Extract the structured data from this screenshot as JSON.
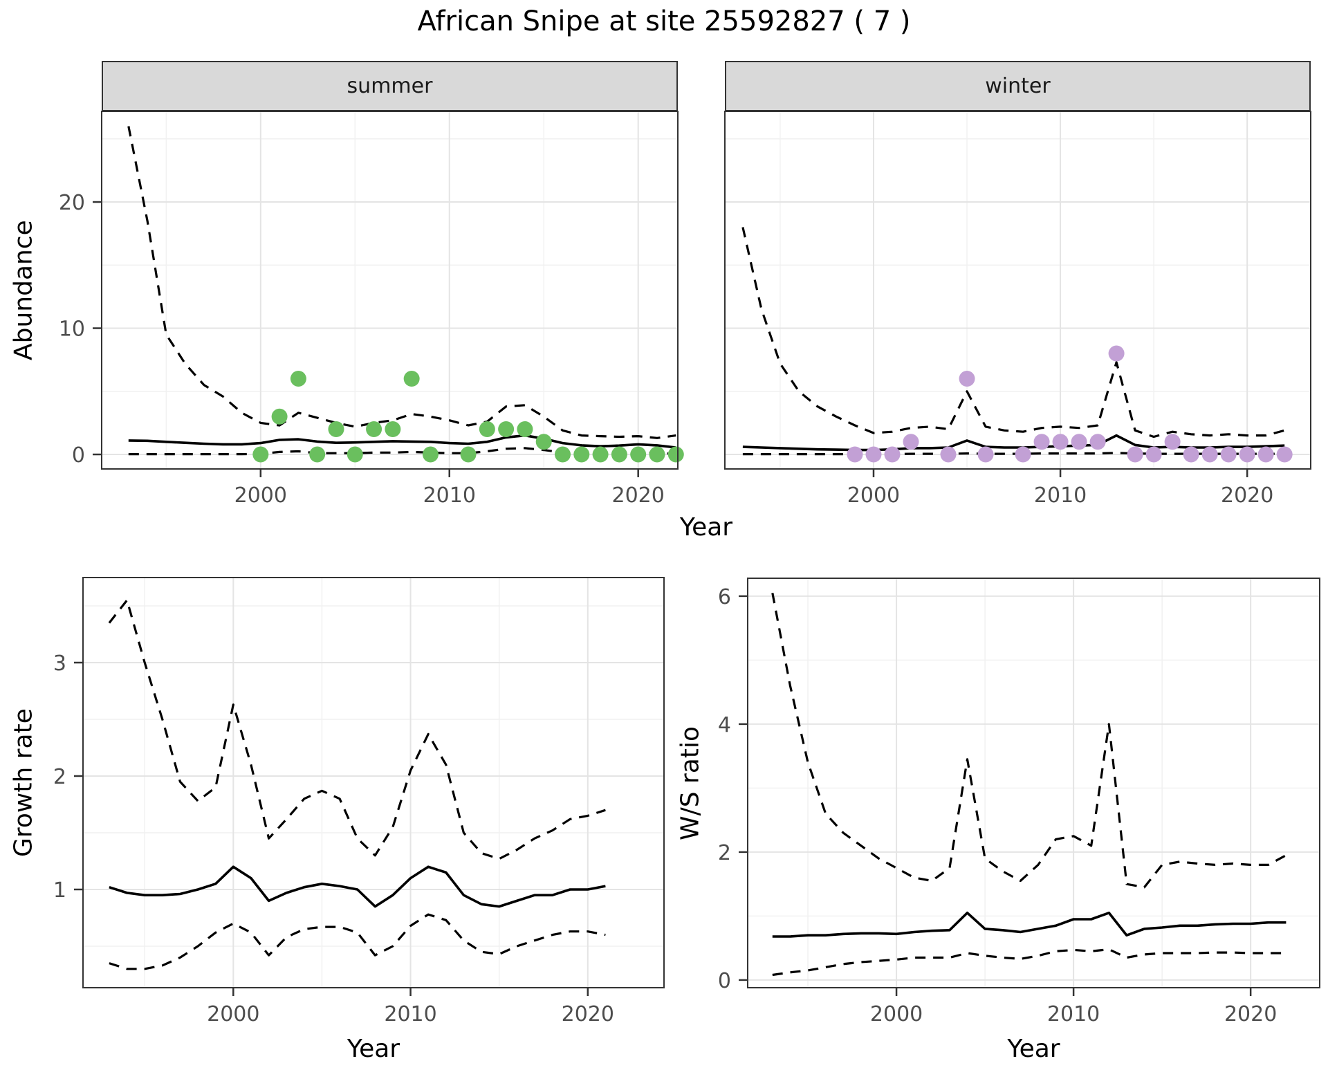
{
  "title": "African Snipe at site 25592827 ( 7 )",
  "labels": {
    "abundance": "Abundance",
    "growth_rate": "Growth rate",
    "ws_ratio": "W/S ratio",
    "year": "Year"
  },
  "facets": [
    "summer",
    "winter"
  ],
  "colors": {
    "summer_points": "#6abf5e",
    "winter_points": "#c2a0d5",
    "line": "#000000",
    "strip_fill": "#d9d9d9",
    "panel_border": "#333333",
    "grid_major": "#e4e4e4",
    "grid_minor": "#f1f1f1",
    "tick_text": "#4d4d4d",
    "tick_mark": "#333333"
  },
  "chart_data": [
    {
      "id": "abundance-summer",
      "type": "line+scatter",
      "facet_label": "summer",
      "ylabel": "Abundance",
      "xlabel": "Year",
      "xlim": [
        1991.58,
        2022.1
      ],
      "ylim": [
        -1.15,
        27.18
      ],
      "xticks": [
        2000,
        2010,
        2020
      ],
      "yticks": [
        0,
        10,
        20
      ],
      "x": [
        1993,
        1994,
        1995,
        1996,
        1997,
        1998,
        1999,
        2000,
        2001,
        2002,
        2003,
        2004,
        2005,
        2006,
        2007,
        2008,
        2009,
        2010,
        2011,
        2012,
        2013,
        2014,
        2015,
        2016,
        2017,
        2018,
        2019,
        2020,
        2021,
        2022
      ],
      "series": [
        {
          "name": "upper_ci",
          "style": "dashed",
          "values": [
            26,
            18.5,
            9.5,
            7.2,
            5.5,
            4.6,
            3.3,
            2.5,
            2.3,
            3.3,
            2.9,
            2.5,
            2.2,
            2.5,
            2.7,
            3.2,
            3.0,
            2.7,
            2.3,
            2.6,
            3.8,
            3.9,
            3.0,
            1.9,
            1.5,
            1.45,
            1.4,
            1.45,
            1.3,
            1.5
          ]
        },
        {
          "name": "mean",
          "style": "solid",
          "values": [
            1.1,
            1.08,
            1.0,
            0.92,
            0.85,
            0.8,
            0.8,
            0.9,
            1.15,
            1.2,
            1.02,
            0.92,
            0.95,
            1.0,
            1.05,
            1.02,
            1.0,
            0.9,
            0.85,
            1.0,
            1.35,
            1.5,
            1.25,
            0.9,
            0.72,
            0.65,
            0.7,
            0.8,
            0.72,
            0.55
          ]
        },
        {
          "name": "lower_ci",
          "style": "dashed",
          "values": [
            0.02,
            0.02,
            0.02,
            0.02,
            0.02,
            0.02,
            0.02,
            0.05,
            0.2,
            0.25,
            0.1,
            0.1,
            0.1,
            0.15,
            0.15,
            0.2,
            0.15,
            0.1,
            0.1,
            0.25,
            0.45,
            0.5,
            0.35,
            0.15,
            0.1,
            0.08,
            0.1,
            0.15,
            0.1,
            0.05
          ]
        },
        {
          "name": "observed_counts",
          "style": "points",
          "color_key": "summer_points",
          "x": [
            2000,
            2001,
            2002,
            2003,
            2004,
            2005,
            2006,
            2007,
            2008,
            2009,
            2011,
            2012,
            2013,
            2014,
            2015,
            2016,
            2017,
            2018,
            2019,
            2020,
            2021,
            2022
          ],
          "values": [
            0,
            3,
            6,
            0,
            2,
            0,
            2,
            2,
            6,
            0,
            0,
            2,
            2,
            2,
            1,
            0,
            0,
            0,
            0,
            0,
            0,
            0
          ]
        }
      ]
    },
    {
      "id": "abundance-winter",
      "type": "line+scatter",
      "facet_label": "winter",
      "ylabel": "Abundance",
      "xlabel": "Year",
      "xlim": [
        1992.04,
        2023.4
      ],
      "ylim": [
        -1.15,
        27.18
      ],
      "xticks": [
        2000,
        2010,
        2020
      ],
      "yticks": [
        0,
        10,
        20
      ],
      "x": [
        1993,
        1994,
        1995,
        1996,
        1997,
        1998,
        1999,
        2000,
        2001,
        2002,
        2003,
        2004,
        2005,
        2006,
        2007,
        2008,
        2009,
        2010,
        2011,
        2012,
        2013,
        2014,
        2015,
        2016,
        2017,
        2018,
        2019,
        2020,
        2021,
        2022
      ],
      "series": [
        {
          "name": "upper_ci",
          "style": "dashed",
          "values": [
            18,
            11.5,
            7.2,
            5.0,
            3.8,
            3.0,
            2.3,
            1.7,
            1.8,
            2.1,
            2.2,
            2.0,
            5.0,
            2.2,
            1.9,
            1.8,
            2.1,
            2.2,
            2.1,
            2.3,
            7.3,
            1.9,
            1.4,
            1.8,
            1.6,
            1.5,
            1.6,
            1.5,
            1.5,
            1.9
          ]
        },
        {
          "name": "mean",
          "style": "solid",
          "values": [
            0.6,
            0.55,
            0.5,
            0.45,
            0.4,
            0.38,
            0.35,
            0.35,
            0.4,
            0.5,
            0.5,
            0.55,
            1.1,
            0.6,
            0.55,
            0.55,
            0.6,
            0.65,
            0.7,
            0.75,
            1.5,
            0.75,
            0.55,
            0.6,
            0.55,
            0.55,
            0.6,
            0.6,
            0.65,
            0.7
          ]
        },
        {
          "name": "lower_ci",
          "style": "dashed",
          "values": [
            0.02,
            0.02,
            0.02,
            0.02,
            0.02,
            0.02,
            0.02,
            0.02,
            0.02,
            0.05,
            0.05,
            0.05,
            0.08,
            0.05,
            0.05,
            0.05,
            0.08,
            0.08,
            0.08,
            0.08,
            0.12,
            0.08,
            0.05,
            0.05,
            0.05,
            0.05,
            0.05,
            0.05,
            0.05,
            0.05
          ]
        },
        {
          "name": "observed_counts",
          "style": "points",
          "color_key": "winter_points",
          "x": [
            1999,
            2000,
            2001,
            2002,
            2004,
            2005,
            2006,
            2008,
            2009,
            2010,
            2011,
            2012,
            2013,
            2014,
            2015,
            2016,
            2017,
            2018,
            2019,
            2020,
            2021,
            2022
          ],
          "values": [
            0,
            0,
            0,
            1,
            0,
            6,
            0,
            0,
            1,
            1,
            1,
            1,
            8,
            0,
            0,
            1,
            0,
            0,
            0,
            0,
            0,
            0
          ]
        }
      ]
    },
    {
      "id": "growth-rate",
      "type": "line",
      "facet_label": "",
      "ylabel": "Growth rate",
      "xlabel": "Year",
      "xlim": [
        1991.52,
        2024.3
      ],
      "ylim": [
        0.134,
        3.75
      ],
      "xticks": [
        2000,
        2010,
        2020
      ],
      "yticks": [
        1,
        2,
        3
      ],
      "x": [
        1993,
        1994,
        1995,
        1996,
        1997,
        1998,
        1999,
        2000,
        2001,
        2002,
        2003,
        2004,
        2005,
        2006,
        2007,
        2008,
        2009,
        2010,
        2011,
        2012,
        2013,
        2014,
        2015,
        2016,
        2017,
        2018,
        2019,
        2020,
        2021
      ],
      "series": [
        {
          "name": "upper_ci",
          "style": "dashed",
          "values": [
            3.35,
            3.55,
            3.0,
            2.5,
            1.95,
            1.78,
            1.9,
            2.63,
            2.1,
            1.45,
            1.62,
            1.8,
            1.87,
            1.8,
            1.45,
            1.3,
            1.55,
            2.05,
            2.37,
            2.1,
            1.5,
            1.32,
            1.27,
            1.35,
            1.45,
            1.52,
            1.62,
            1.65,
            1.7
          ]
        },
        {
          "name": "mean",
          "style": "solid",
          "values": [
            1.02,
            0.97,
            0.95,
            0.95,
            0.96,
            1.0,
            1.05,
            1.2,
            1.1,
            0.9,
            0.97,
            1.02,
            1.05,
            1.03,
            1.0,
            0.85,
            0.95,
            1.1,
            1.2,
            1.15,
            0.95,
            0.87,
            0.85,
            0.9,
            0.95,
            0.95,
            1.0,
            1.0,
            1.03
          ]
        },
        {
          "name": "lower_ci",
          "style": "dashed",
          "values": [
            0.35,
            0.3,
            0.3,
            0.33,
            0.4,
            0.5,
            0.62,
            0.7,
            0.62,
            0.42,
            0.58,
            0.65,
            0.67,
            0.67,
            0.62,
            0.42,
            0.5,
            0.68,
            0.78,
            0.73,
            0.55,
            0.45,
            0.43,
            0.5,
            0.55,
            0.6,
            0.63,
            0.63,
            0.6
          ]
        }
      ]
    },
    {
      "id": "ws-ratio",
      "type": "line",
      "facet_label": "",
      "ylabel": "W/S ratio",
      "xlabel": "Year",
      "xlim": [
        1991.6,
        2023.9
      ],
      "ylim": [
        -0.12,
        6.28
      ],
      "xticks": [
        2000,
        2010,
        2020
      ],
      "yticks": [
        0,
        2,
        4,
        6
      ],
      "x": [
        1993,
        1994,
        1995,
        1996,
        1997,
        1998,
        1999,
        2000,
        2001,
        2002,
        2003,
        2004,
        2005,
        2006,
        2007,
        2008,
        2009,
        2010,
        2011,
        2012,
        2013,
        2014,
        2015,
        2016,
        2017,
        2018,
        2019,
        2020,
        2021,
        2022
      ],
      "series": [
        {
          "name": "upper_ci",
          "style": "dashed",
          "values": [
            6.05,
            4.6,
            3.4,
            2.6,
            2.3,
            2.1,
            1.9,
            1.75,
            1.6,
            1.55,
            1.75,
            3.45,
            1.9,
            1.7,
            1.55,
            1.8,
            2.2,
            2.25,
            2.1,
            4.0,
            1.5,
            1.45,
            1.8,
            1.85,
            1.82,
            1.8,
            1.82,
            1.8,
            1.8,
            1.95
          ]
        },
        {
          "name": "mean",
          "style": "solid",
          "values": [
            0.68,
            0.68,
            0.7,
            0.7,
            0.72,
            0.73,
            0.73,
            0.72,
            0.75,
            0.77,
            0.78,
            1.05,
            0.8,
            0.78,
            0.75,
            0.8,
            0.85,
            0.95,
            0.95,
            1.05,
            0.7,
            0.8,
            0.82,
            0.85,
            0.85,
            0.87,
            0.88,
            0.88,
            0.9,
            0.9
          ]
        },
        {
          "name": "lower_ci",
          "style": "dashed",
          "values": [
            0.08,
            0.12,
            0.15,
            0.2,
            0.25,
            0.28,
            0.3,
            0.32,
            0.35,
            0.35,
            0.35,
            0.42,
            0.38,
            0.35,
            0.33,
            0.38,
            0.45,
            0.47,
            0.45,
            0.48,
            0.35,
            0.4,
            0.42,
            0.42,
            0.42,
            0.43,
            0.43,
            0.42,
            0.42,
            0.42
          ]
        }
      ]
    }
  ]
}
